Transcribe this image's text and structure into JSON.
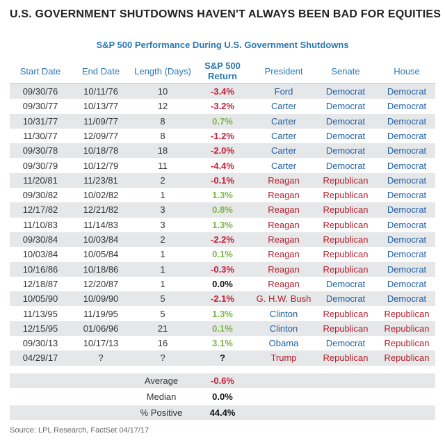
{
  "title": "U.S. GOVERNMENT SHUTDOWNS HAVEN'T ALWAYS BEEN BAD FOR EQUITIES",
  "subtitle": "S&P 500 Performance During U.S. Government Shutdowns",
  "table": {
    "header": [
      "Start Date",
      "End Date",
      "Length (Days)",
      "S&P 500\nReturn",
      "President",
      "Senate",
      "House"
    ],
    "rows": [
      [
        "09/30/76",
        "10/11/76",
        "10",
        "-3.4%",
        "Ford",
        "Democrat",
        "Democrat"
      ],
      [
        "09/30/77",
        "10/13/77",
        "12",
        "-3.2%",
        "Carter",
        "Democrat",
        "Democrat"
      ],
      [
        "10/31/77",
        "11/09/77",
        "8",
        "0.7%",
        "Carter",
        "Democrat",
        "Democrat"
      ],
      [
        "11/30/77",
        "12/09/77",
        "8",
        "-1.2%",
        "Carter",
        "Democrat",
        "Democrat"
      ],
      [
        "09/30/78",
        "10/18/78",
        "18",
        "-2.0%",
        "Carter",
        "Democrat",
        "Democrat"
      ],
      [
        "09/30/79",
        "10/12/79",
        "11",
        "-4.4%",
        "Carter",
        "Democrat",
        "Democrat"
      ],
      [
        "11/20/81",
        "11/23/81",
        "2",
        "-0.1%",
        "Reagan",
        "Republican",
        "Democrat"
      ],
      [
        "09/30/82",
        "10/02/82",
        "1",
        "1.3%",
        "Reagan",
        "Republican",
        "Democrat"
      ],
      [
        "12/17/82",
        "12/21/82",
        "3",
        "0.8%",
        "Reagan",
        "Republican",
        "Democrat"
      ],
      [
        "11/10/83",
        "11/14/83",
        "3",
        "1.3%",
        "Reagan",
        "Republican",
        "Democrat"
      ],
      [
        "09/30/84",
        "10/03/84",
        "2",
        "-2.2%",
        "Reagan",
        "Republican",
        "Democrat"
      ],
      [
        "10/03/84",
        "10/05/84",
        "1",
        "0.1%",
        "Reagan",
        "Republican",
        "Democrat"
      ],
      [
        "10/16/86",
        "10/18/86",
        "1",
        "-0.3%",
        "Reagan",
        "Republican",
        "Democrat"
      ],
      [
        "12/18/87",
        "12/20/87",
        "1",
        "0.0%",
        "Reagan",
        "Democrat",
        "Democrat"
      ],
      [
        "10/05/90",
        "10/09/90",
        "5",
        "-2.1%",
        "G. H.W. Bush",
        "Democrat",
        "Democrat"
      ],
      [
        "11/13/95",
        "11/19/95",
        "5",
        "1.3%",
        "Clinton",
        "Republican",
        "Republican"
      ],
      [
        "12/15/95",
        "01/06/96",
        "21",
        "0.1%",
        "Clinton",
        "Republican",
        "Republican"
      ],
      [
        "09/30/13",
        "10/17/13",
        "16",
        "3.1%",
        "Obama",
        "Democrat",
        "Republican"
      ],
      [
        "04/29/17",
        "?",
        "?",
        "?",
        "Trump",
        "Republican",
        "Republican"
      ]
    ],
    "summary": [
      [
        "Average",
        "-0.6%"
      ],
      [
        "Median",
        "0.0%"
      ],
      [
        "% Positive",
        "44.4%"
      ]
    ]
  },
  "colors": {
    "negative": "#c41e3a",
    "positive": "#7ab648",
    "Democrat": "#1f5fa8",
    "Republican": "#b5202e",
    "Ford": "#1f5fa8",
    "Carter": "#1f5fa8",
    "Clinton": "#1f5fa8",
    "Obama": "#1f5fa8",
    "Reagan": "#b5202e",
    "G. H.W. Bush": "#b5202e",
    "Trump": "#b5202e"
  },
  "source": "Source: LPL Research, FactSet   04/17/17"
}
